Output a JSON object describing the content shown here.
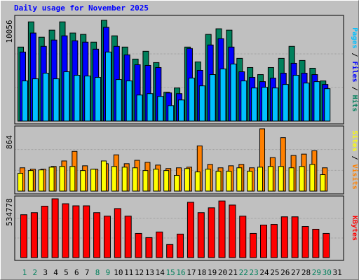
{
  "chart_data": [
    {
      "type": "bar",
      "title": "Daily usage for November 2025",
      "legend_separator": "/",
      "ylim": [
        0,
        10056
      ],
      "yticks": [
        10056
      ],
      "grid": true,
      "series": [
        {
          "name": "Hits",
          "color": "#00805c",
          "values": [
            7384,
            9900,
            8368,
            9071,
            9900,
            8790,
            8650,
            7876,
            10056,
            8509,
            7384,
            6188,
            6962,
            5837,
            2883,
            3305,
            7384,
            5907,
            8650,
            9212,
            9071,
            6259,
            5344,
            4641,
            5344,
            6259,
            7454,
            6048,
            5274,
            4008,
            0
          ]
        },
        {
          "name": "Files",
          "color": "#0000ff",
          "values": [
            6891,
            8790,
            7454,
            8087,
            8509,
            8017,
            7876,
            7173,
            9353,
            7454,
            6610,
            5626,
            5555,
            5344,
            2813,
            2742,
            7243,
            5063,
            7595,
            8228,
            7384,
            4922,
            4360,
            3938,
            4290,
            4782,
            5766,
            4782,
            4641,
            3657,
            0
          ]
        },
        {
          "name": "Pages",
          "color": "#00c0ff",
          "values": [
            4008,
            4219,
            4782,
            4219,
            4922,
            4571,
            4500,
            4360,
            6891,
            4149,
            4008,
            2602,
            2742,
            2461,
            1547,
            2110,
            4290,
            3516,
            4641,
            5204,
            5696,
            4008,
            3305,
            3375,
            3305,
            3657,
            4571,
            3797,
            3938,
            3235,
            0
          ]
        }
      ]
    },
    {
      "type": "bar",
      "legend_separator": "/",
      "ylim": [
        0,
        864
      ],
      "yticks": [
        864
      ],
      "grid": true,
      "series": [
        {
          "name": "Visits",
          "color": "#ff8000",
          "values": [
            323,
            304,
            304,
            342,
            418,
            551,
            351,
            304,
            380,
            503,
            380,
            427,
            399,
            361,
            313,
            323,
            332,
            627,
            370,
            323,
            351,
            370,
            323,
            864,
            465,
            741,
            494,
            513,
            560,
            323,
            0
          ]
        },
        {
          "name": "Sites",
          "color": "#ffff00",
          "values": [
            247,
            285,
            294,
            332,
            342,
            342,
            285,
            304,
            418,
            342,
            332,
            323,
            285,
            304,
            285,
            218,
            313,
            266,
            304,
            275,
            275,
            323,
            275,
            332,
            342,
            342,
            323,
            342,
            370,
            228,
            0
          ]
        }
      ]
    },
    {
      "type": "bar",
      "ylim": [
        0,
        534778
      ],
      "yticks": [
        534778
      ],
      "grid": true,
      "series": [
        {
          "name": "KBytes",
          "color": "#ff0000",
          "values": [
            390000,
            409000,
            468000,
            534778,
            490000,
            471000,
            471000,
            409000,
            377000,
            446000,
            377000,
            220000,
            182000,
            233000,
            119000,
            214000,
            503000,
            409000,
            453000,
            515000,
            478000,
            377000,
            220000,
            296000,
            302000,
            371000,
            371000,
            283000,
            258000,
            220000,
            0
          ]
        }
      ],
      "categories": [
        "1",
        "2",
        "3",
        "4",
        "5",
        "6",
        "7",
        "8",
        "9",
        "10",
        "11",
        "12",
        "13",
        "14",
        "15",
        "16",
        "17",
        "18",
        "19",
        "20",
        "21",
        "22",
        "23",
        "24",
        "25",
        "26",
        "27",
        "28",
        "29",
        "30",
        "31"
      ],
      "category_colors": [
        "#00805c",
        "#00805c",
        "#000000",
        "#000000",
        "#000000",
        "#000000",
        "#000000",
        "#00805c",
        "#00805c",
        "#000000",
        "#000000",
        "#000000",
        "#000000",
        "#000000",
        "#00805c",
        "#00805c",
        "#000000",
        "#000000",
        "#000000",
        "#000000",
        "#000000",
        "#00805c",
        "#00805c",
        "#000000",
        "#000000",
        "#000000",
        "#000000",
        "#000000",
        "#00805c",
        "#00805c",
        "#000000"
      ]
    }
  ]
}
